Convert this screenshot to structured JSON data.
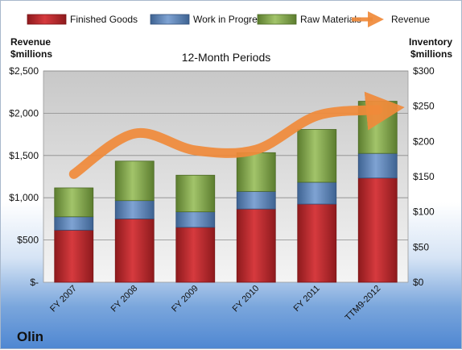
{
  "brand": "Olin",
  "chart_data": {
    "type": "bar",
    "stacked": true,
    "subtitle": "12-Month Periods",
    "categories": [
      "FY 2007",
      "FY 2008",
      "FY 2009",
      "FY 2010",
      "FY 2011",
      "TTM9-2012"
    ],
    "series": [
      {
        "name": "Finished Goods",
        "axis": "right",
        "color": "#c0282d",
        "values": [
          74,
          90,
          78,
          104,
          111,
          148
        ]
      },
      {
        "name": "Work in Progress",
        "axis": "right",
        "color": "#5f87bd",
        "values": [
          19,
          26,
          22,
          25,
          31,
          35
        ]
      },
      {
        "name": "Raw Materials",
        "axis": "right",
        "color": "#8aae4e",
        "values": [
          41,
          56,
          52,
          55,
          75,
          74
        ]
      },
      {
        "name": "Revenue",
        "axis": "left",
        "type": "line",
        "color": "#f08a3a",
        "values": [
          1280,
          1760,
          1560,
          1570,
          1970,
          2040
        ]
      }
    ],
    "left_axis": {
      "label_lines": [
        "Revenue",
        "$millions"
      ],
      "ylim": [
        0,
        2500
      ],
      "ticks": [
        0,
        500,
        1000,
        1500,
        2000,
        2500
      ],
      "tick_labels": [
        "$-",
        "$500",
        "$1,000",
        "$1,500",
        "$2,000",
        "$2,500"
      ]
    },
    "right_axis": {
      "label_lines": [
        "Inventory",
        "$millions"
      ],
      "ylim": [
        0,
        300
      ],
      "ticks": [
        0,
        50,
        100,
        150,
        200,
        250,
        300
      ],
      "tick_labels": [
        "$0",
        "$50",
        "$100",
        "$150",
        "$200",
        "$250",
        "$300"
      ]
    },
    "legend": {
      "position": "top",
      "items": [
        "Finished Goods",
        "Work in Progress",
        "Raw Materials",
        "Revenue"
      ]
    },
    "grid": true
  }
}
